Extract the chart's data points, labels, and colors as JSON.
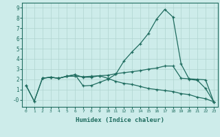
{
  "xlabel": "Humidex (Indice chaleur)",
  "bg_color": "#cdecea",
  "grid_color": "#b0d4d0",
  "line_color": "#1e6b5e",
  "xlim": [
    -0.5,
    23.5
  ],
  "ylim": [
    -0.7,
    9.5
  ],
  "xticks": [
    0,
    1,
    2,
    3,
    4,
    5,
    6,
    7,
    8,
    9,
    10,
    11,
    12,
    13,
    14,
    15,
    16,
    17,
    18,
    19,
    20,
    21,
    22,
    23
  ],
  "yticks": [
    0,
    1,
    2,
    3,
    4,
    5,
    6,
    7,
    8,
    9
  ],
  "ytick_labels": [
    "-0",
    "1",
    "2",
    "3",
    "4",
    "5",
    "6",
    "7",
    "8",
    "9"
  ],
  "line1_x": [
    0,
    1,
    2,
    3,
    4,
    5,
    6,
    7,
    8,
    9,
    10,
    11,
    12,
    13,
    14,
    15,
    16,
    17,
    18,
    19,
    20,
    21,
    22,
    23
  ],
  "line1_y": [
    1.4,
    -0.15,
    2.1,
    2.2,
    2.1,
    2.3,
    2.45,
    1.35,
    1.4,
    1.7,
    2.0,
    2.5,
    3.8,
    4.7,
    5.5,
    6.5,
    7.9,
    8.85,
    8.1,
    3.5,
    2.0,
    1.9,
    1.1,
    -0.2
  ],
  "line2_x": [
    0,
    1,
    2,
    3,
    4,
    5,
    6,
    7,
    8,
    9,
    10,
    11,
    12,
    13,
    14,
    15,
    16,
    17,
    18,
    19,
    20,
    21,
    22,
    23
  ],
  "line2_y": [
    1.4,
    -0.15,
    2.1,
    2.2,
    2.1,
    2.3,
    2.45,
    2.2,
    2.2,
    2.35,
    2.4,
    2.55,
    2.65,
    2.75,
    2.85,
    3.0,
    3.1,
    3.3,
    3.3,
    2.1,
    2.05,
    2.0,
    1.95,
    -0.2
  ],
  "line3_x": [
    2,
    3,
    4,
    5,
    6,
    7,
    8,
    9,
    10,
    11,
    12,
    13,
    14,
    15,
    16,
    17,
    18,
    19,
    20,
    21,
    22,
    23
  ],
  "line3_y": [
    2.1,
    2.2,
    2.1,
    2.3,
    2.3,
    2.25,
    2.3,
    2.35,
    2.1,
    1.8,
    1.6,
    1.5,
    1.3,
    1.1,
    1.0,
    0.9,
    0.8,
    0.6,
    0.5,
    0.25,
    0.1,
    -0.2
  ]
}
